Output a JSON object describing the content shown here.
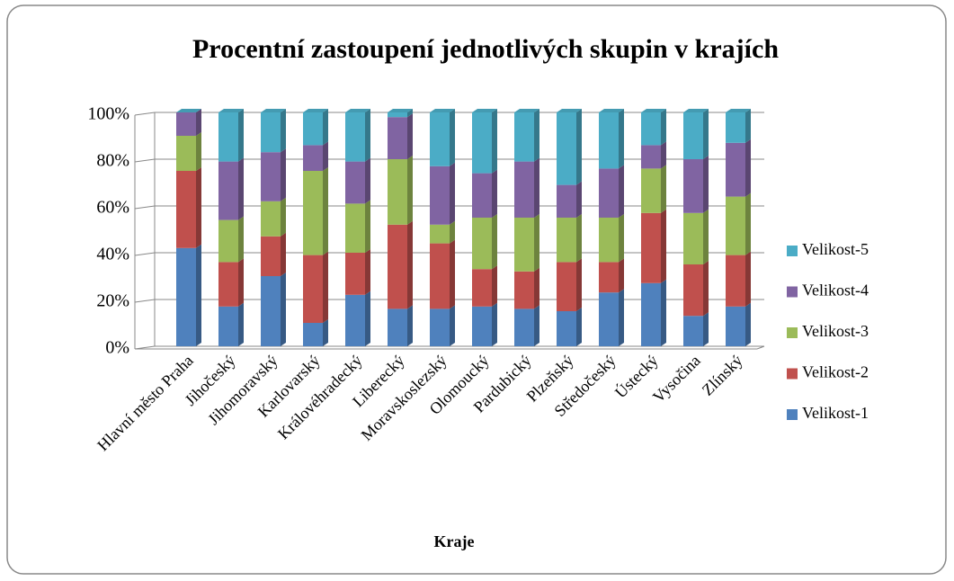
{
  "chart_data": {
    "type": "bar",
    "stacked": true,
    "title": "Procentní zastoupení  jednotlivých skupin v krajích",
    "x_label": "Kraje",
    "categories": [
      "Hlavní město Praha",
      "Jihočeský",
      "Jihomoravský",
      "Karlovarský",
      "Královéhradecký",
      "Liberecký",
      "Moravskoslezský",
      "Olomoucký",
      "Pardubický",
      "Plzeňský",
      "Středočeský",
      "Ústecký",
      "Vysočina",
      "Zlínský"
    ],
    "series": [
      {
        "name": "Velikost-1",
        "color": "#4f81bd",
        "values": [
          42,
          17,
          30,
          10,
          22,
          16,
          16,
          17,
          16,
          15,
          23,
          27,
          13,
          17
        ]
      },
      {
        "name": "Velikost-2",
        "color": "#c0504d",
        "values": [
          33,
          19,
          17,
          29,
          18,
          36,
          28,
          16,
          16,
          21,
          13,
          30,
          22,
          22
        ]
      },
      {
        "name": "Velikost-3",
        "color": "#9bbb59",
        "values": [
          15,
          18,
          15,
          36,
          21,
          28,
          8,
          22,
          23,
          19,
          19,
          19,
          22,
          25
        ]
      },
      {
        "name": "Velikost-4",
        "color": "#8064a2",
        "values": [
          10,
          25,
          21,
          11,
          18,
          18,
          25,
          19,
          24,
          14,
          21,
          10,
          23,
          23
        ]
      },
      {
        "name": "Velikost-5",
        "color": "#4bacc6",
        "values": [
          0,
          21,
          17,
          14,
          21,
          2,
          23,
          26,
          21,
          31,
          24,
          14,
          20,
          13
        ]
      }
    ],
    "ylim": [
      0,
      100
    ],
    "yticks": [
      {
        "value": 0,
        "label": "0%"
      },
      {
        "value": 20,
        "label": "20%"
      },
      {
        "value": 40,
        "label": "40%"
      },
      {
        "value": 60,
        "label": "60%"
      },
      {
        "value": 80,
        "label": "80%"
      },
      {
        "value": 100,
        "label": "100%"
      }
    ],
    "grid": true,
    "legend": "right"
  }
}
